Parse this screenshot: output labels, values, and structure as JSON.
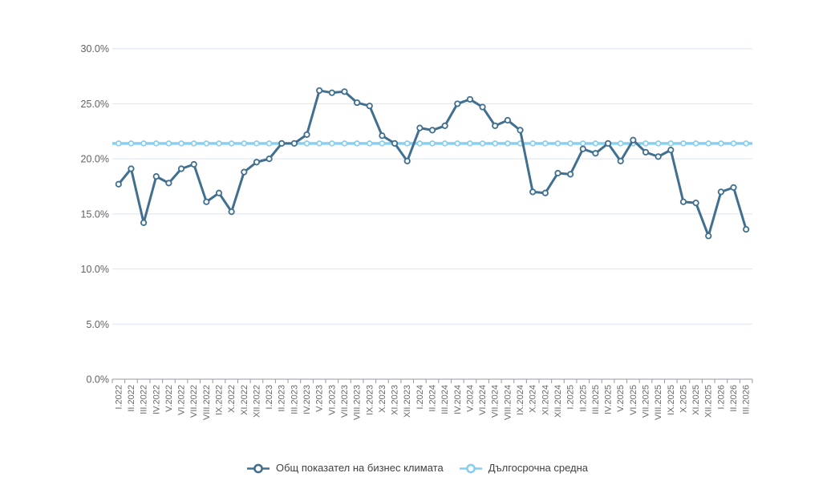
{
  "chart": {
    "background": "#ffffff",
    "colors": {
      "series_main": "#406f90",
      "series_average": "#84cff2",
      "marker_fill": "#ffffff",
      "gridline": "#dde3ed",
      "axis_line": "#969aa3",
      "y_label_text": "#606266",
      "x_label_text": "#65686d",
      "legend_text": "#3f4246"
    }
  },
  "chart_data": {
    "type": "line",
    "title": "",
    "xlabel": "",
    "ylabel": "",
    "ylim": [
      0,
      30
    ],
    "grid": "horizontal",
    "legend_position": "bottom",
    "y_ticks": [
      "0.0%",
      "5.0%",
      "10.0%",
      "15.0%",
      "20.0%",
      "25.0%",
      "30.0%"
    ],
    "categories": [
      "I.2022",
      "II.2022",
      "III.2022",
      "IV.2022",
      "V.2022",
      "VI.2022",
      "VII.2022",
      "VIII.2022",
      "IX.2022",
      "X.2022",
      "XI.2022",
      "XII.2022",
      "I.2023",
      "II.2023",
      "III.2023",
      "IV.2023",
      "V.2023",
      "VI.2023",
      "VII.2023",
      "VIII.2023",
      "IX.2023",
      "X.2023",
      "XI.2023",
      "XII.2023",
      "I.2024",
      "II.2024",
      "III.2024",
      "IV.2024",
      "V.2024",
      "VI.2024",
      "VII.2024",
      "VIII.2024",
      "IX.2024",
      "X.2024",
      "XI.2024",
      "XII.2024",
      "I.2025",
      "II.2025",
      "III.2025",
      "IV.2025",
      "V.2025",
      "VI.2025",
      "VII.2025",
      "VIII.2025",
      "IX.2025",
      "X.2025",
      "XI.2025",
      "XII.2025",
      "I.2026",
      "II.2026",
      "III.2026"
    ],
    "series": [
      {
        "name": "Общ показател на бизнес климата",
        "color": "#406f90",
        "values": [
          17.7,
          19.1,
          14.2,
          18.4,
          17.8,
          19.1,
          19.5,
          16.1,
          16.9,
          15.2,
          18.8,
          19.7,
          20.0,
          21.4,
          21.4,
          22.2,
          26.2,
          26.0,
          26.1,
          25.1,
          24.8,
          22.1,
          21.4,
          19.8,
          22.8,
          22.6,
          23.0,
          25.0,
          25.4,
          24.7,
          23.0,
          23.5,
          22.6,
          17.0,
          16.9,
          18.7,
          18.6,
          20.9,
          20.5,
          21.4,
          19.8,
          21.7,
          20.6,
          20.2,
          20.8,
          16.1,
          16.0,
          13.0,
          17.0,
          17.4,
          13.6
        ]
      },
      {
        "name": "Дългосрочна средна",
        "color": "#84cff2",
        "constant_value": 21.4
      }
    ],
    "long_term_average": 21.4
  },
  "legend": {
    "items": [
      {
        "label": "Общ показател на бизнес климата"
      },
      {
        "label": "Дългосрочна средна"
      }
    ]
  }
}
